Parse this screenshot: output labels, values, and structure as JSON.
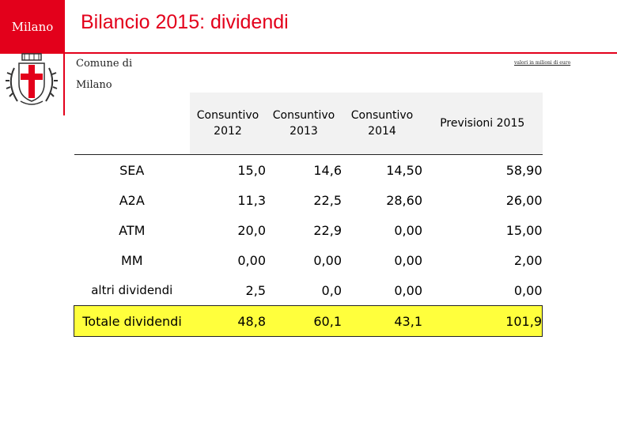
{
  "header": {
    "logo_text": "Milano",
    "title": "Bilancio 2015: dividendi",
    "subtitle_line1": "Comune di",
    "subtitle_line2": "Milano",
    "unit_note": "valori in milioni di euro",
    "accent_color": "#e3001b",
    "crest_icon": "coat-of-arms-icon"
  },
  "table": {
    "columns": [
      "",
      "Consuntivo 2012",
      "Consuntivo 2013",
      "Consuntivo 2014",
      "Previsioni 2015"
    ],
    "column_lines": [
      [
        "",
        ""
      ],
      [
        "Consuntivo",
        "2012"
      ],
      [
        "Consuntivo",
        "2013"
      ],
      [
        "Consuntivo",
        "2014"
      ],
      [
        "Previsioni 2015",
        ""
      ]
    ],
    "rows": [
      {
        "label": "SEA",
        "values": [
          "15,0",
          "14,6",
          "14,50",
          "58,90"
        ]
      },
      {
        "label": "A2A",
        "values": [
          "11,3",
          "22,5",
          "28,60",
          "26,00"
        ]
      },
      {
        "label": "ATM",
        "values": [
          "20,0",
          "22,9",
          "0,00",
          "15,00"
        ]
      },
      {
        "label": "MM",
        "values": [
          "0,00",
          "0,00",
          "0,00",
          "2,00"
        ]
      },
      {
        "label": "altri dividendi",
        "values": [
          "2,5",
          "0,0",
          "0,00",
          "0,00"
        ]
      },
      {
        "label": "Totale dividendi",
        "values": [
          "48,8",
          "60,1",
          "43,1",
          "101,9"
        ]
      }
    ],
    "highlight_color": "#ffff3c"
  }
}
